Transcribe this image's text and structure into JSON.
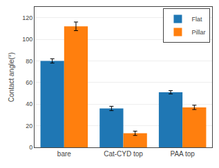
{
  "chart_data": {
    "type": "bar",
    "ylabel": "Contact angle(°)",
    "categories": [
      "bare",
      "Cat-CYD top",
      "PAA top"
    ],
    "series": [
      {
        "name": "Flat",
        "values": [
          80,
          36,
          51
        ],
        "errors": [
          2,
          2,
          1.5
        ]
      },
      {
        "name": "Pillar",
        "values": [
          112,
          13,
          37
        ],
        "errors": [
          4,
          2,
          2
        ]
      }
    ],
    "ylim": [
      0,
      130
    ],
    "yticks": [
      0,
      20,
      40,
      60,
      80,
      100,
      120
    ],
    "grid": true,
    "legend": "upper right"
  }
}
